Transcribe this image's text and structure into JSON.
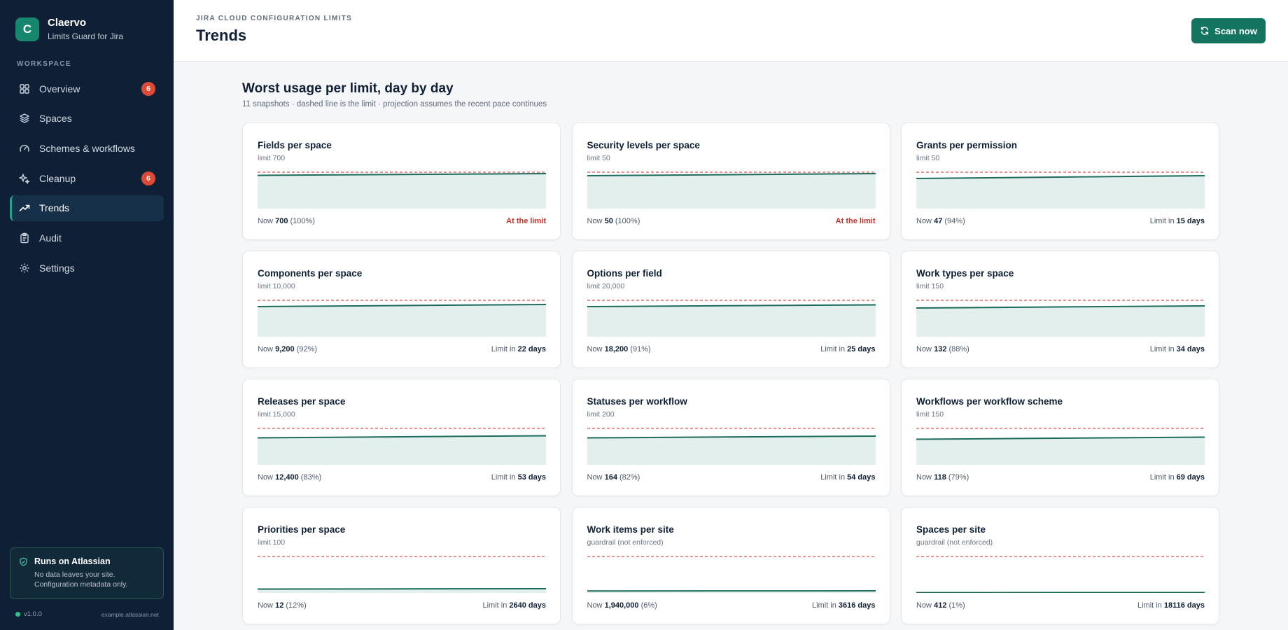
{
  "app": {
    "logo_letter": "C",
    "name": "Claervo",
    "subtitle": "Limits Guard for Jira"
  },
  "sidebar": {
    "section_label": "WORKSPACE",
    "items": [
      {
        "label": "Overview",
        "icon": "grid-icon",
        "badge": "6",
        "active": false
      },
      {
        "label": "Spaces",
        "icon": "layers-icon",
        "badge": null,
        "active": false
      },
      {
        "label": "Schemes & workflows",
        "icon": "gauge-icon",
        "badge": null,
        "active": false
      },
      {
        "label": "Cleanup",
        "icon": "sparkle-icon",
        "badge": "6",
        "active": false
      },
      {
        "label": "Trends",
        "icon": "trend-icon",
        "badge": null,
        "active": true
      },
      {
        "label": "Audit",
        "icon": "clipboard-icon",
        "badge": null,
        "active": false
      },
      {
        "label": "Settings",
        "icon": "gear-icon",
        "badge": null,
        "active": false
      }
    ],
    "info_box": {
      "title": "Runs on Atlassian",
      "text": "No data leaves your site. Configuration metadata only."
    },
    "version": "v1.0.0",
    "site": "example.atlassian.net"
  },
  "header": {
    "eyebrow": "JIRA CLOUD CONFIGURATION LIMITS",
    "title": "Trends",
    "scan_button": "Scan now"
  },
  "main": {
    "title": "Worst usage per limit, day by day",
    "subtitle": "11 snapshots · dashed line is the limit · projection assumes the recent pace continues"
  },
  "colors": {
    "accent": "#137560",
    "line": "#1c6b5c",
    "fill": "#e2efed",
    "limit": "#d9534f",
    "badge": "#dd4a35"
  },
  "cards": [
    {
      "title": "Fields per space",
      "limit_text": "limit 700",
      "now_label": "Now",
      "now_value": "700",
      "now_pct": "(100%)",
      "status_prefix": "",
      "status_value": "At the limit",
      "at_limit": true,
      "usage_start": 0.95,
      "usage_end": 1.0
    },
    {
      "title": "Security levels per space",
      "limit_text": "limit 50",
      "now_label": "Now",
      "now_value": "50",
      "now_pct": "(100%)",
      "status_prefix": "",
      "status_value": "At the limit",
      "at_limit": true,
      "usage_start": 0.94,
      "usage_end": 1.0
    },
    {
      "title": "Grants per permission",
      "limit_text": "limit 50",
      "now_label": "Now",
      "now_value": "47",
      "now_pct": "(94%)",
      "status_prefix": "Limit in",
      "status_value": "15 days",
      "at_limit": false,
      "usage_start": 0.86,
      "usage_end": 0.94
    },
    {
      "title": "Components per space",
      "limit_text": "limit 10,000",
      "now_label": "Now",
      "now_value": "9,200",
      "now_pct": "(92%)",
      "status_prefix": "Limit in",
      "status_value": "22 days",
      "at_limit": false,
      "usage_start": 0.86,
      "usage_end": 0.92
    },
    {
      "title": "Options per field",
      "limit_text": "limit 20,000",
      "now_label": "Now",
      "now_value": "18,200",
      "now_pct": "(91%)",
      "status_prefix": "Limit in",
      "status_value": "25 days",
      "at_limit": false,
      "usage_start": 0.86,
      "usage_end": 0.91
    },
    {
      "title": "Work types per space",
      "limit_text": "limit 150",
      "now_label": "Now",
      "now_value": "132",
      "now_pct": "(88%)",
      "status_prefix": "Limit in",
      "status_value": "34 days",
      "at_limit": false,
      "usage_start": 0.82,
      "usage_end": 0.88
    },
    {
      "title": "Releases per space",
      "limit_text": "limit 15,000",
      "now_label": "Now",
      "now_value": "12,400",
      "now_pct": "(83%)",
      "status_prefix": "Limit in",
      "status_value": "53 days",
      "at_limit": false,
      "usage_start": 0.77,
      "usage_end": 0.83
    },
    {
      "title": "Statuses per workflow",
      "limit_text": "limit 200",
      "now_label": "Now",
      "now_value": "164",
      "now_pct": "(82%)",
      "status_prefix": "Limit in",
      "status_value": "54 days",
      "at_limit": false,
      "usage_start": 0.77,
      "usage_end": 0.82
    },
    {
      "title": "Workflows per workflow scheme",
      "limit_text": "limit 150",
      "now_label": "Now",
      "now_value": "118",
      "now_pct": "(79%)",
      "status_prefix": "Limit in",
      "status_value": "69 days",
      "at_limit": false,
      "usage_start": 0.73,
      "usage_end": 0.79
    },
    {
      "title": "Priorities per space",
      "limit_text": "limit 100",
      "now_label": "Now",
      "now_value": "12",
      "now_pct": "(12%)",
      "status_prefix": "Limit in",
      "status_value": "2640 days",
      "at_limit": false,
      "usage_start": 0.11,
      "usage_end": 0.12
    },
    {
      "title": "Work items per site",
      "limit_text": "guardrail (not enforced)",
      "now_label": "Now",
      "now_value": "1,940,000",
      "now_pct": "(6%)",
      "status_prefix": "Limit in",
      "status_value": "3616 days",
      "at_limit": false,
      "usage_start": 0.055,
      "usage_end": 0.06
    },
    {
      "title": "Spaces per site",
      "limit_text": "guardrail (not enforced)",
      "now_label": "Now",
      "now_value": "412",
      "now_pct": "(1%)",
      "status_prefix": "Limit in",
      "status_value": "18116 days",
      "at_limit": false,
      "usage_start": 0.008,
      "usage_end": 0.01
    }
  ]
}
